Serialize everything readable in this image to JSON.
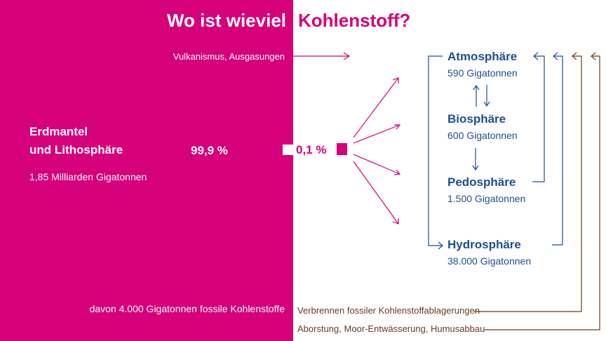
{
  "title": {
    "left": "Wo ist wieviel",
    "right": "Kohlenstoff?"
  },
  "volcanism": "Vulkanismus, Ausgasungen",
  "mantle": {
    "name_line1": "Erdmantel",
    "name_line2": "und Lithosphäre",
    "share": "99,9 %",
    "amount": "1,85 Milliarden Gigatonnen",
    "fossil": "davon 4.000 Gigatonnen fossile Kohlenstoffe"
  },
  "surface_share": "0,1 %",
  "spheres": [
    {
      "name": "Atmosphäre",
      "value": "590 Gigatonnen"
    },
    {
      "name": "Biosphäre",
      "value": "600 Gigatonnen"
    },
    {
      "name": "Pedosphäre",
      "value": "1.500 Gigatonnen"
    },
    {
      "name": "Hydrosphäre",
      "value": "38.000 Gigatonnen"
    }
  ],
  "human_flows": [
    "Verbrennen fossiler Kohlenstoffablagerungen",
    "Aborstung, Moor-Entwässerung, Humusabbau"
  ],
  "colors": {
    "magenta": "#d6007a",
    "blue": "#1d4f91",
    "brown": "#6b3b1a"
  }
}
